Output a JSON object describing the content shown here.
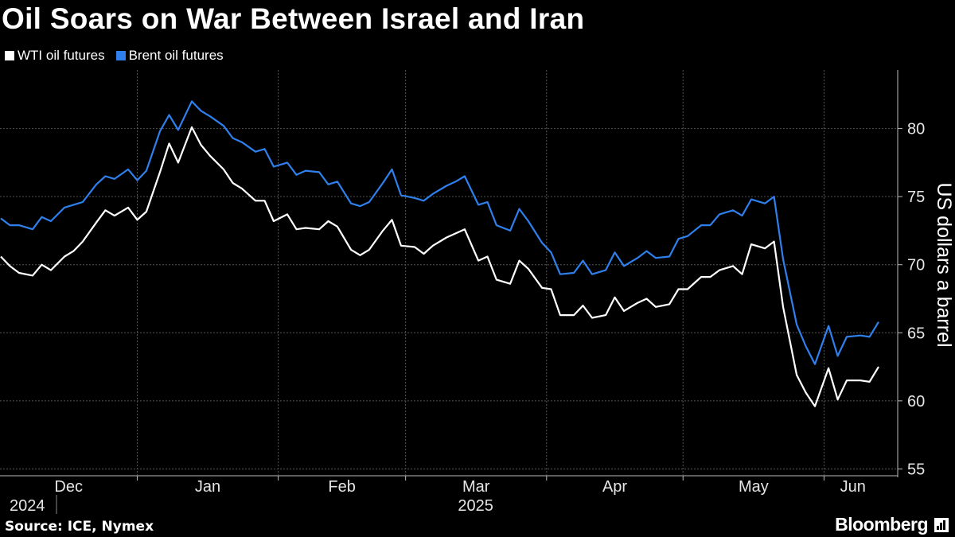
{
  "header": {
    "title": "Oil Soars on War Between Israel and Iran"
  },
  "footer": {
    "source": "Source: ICE, Nymex",
    "brand": "Bloomberg"
  },
  "chart_data": {
    "type": "line",
    "title": "Oil Soars on War Between Israel and Iran",
    "ylabel": "US dollars a barrel",
    "xlabel": "",
    "ylim": [
      54.5,
      84.3
    ],
    "yticks": [
      55,
      60,
      65,
      70,
      75,
      80
    ],
    "x_start": "2024-12-02",
    "x_end": "2025-06-13",
    "x_ticks": [
      {
        "label": "Dec",
        "date": "2024-12-01",
        "year": "2024"
      },
      {
        "label": "Jan",
        "date": "2025-01-01",
        "year": "2025"
      },
      {
        "label": "Feb",
        "date": "2025-02-01"
      },
      {
        "label": "Mar",
        "date": "2025-03-01"
      },
      {
        "label": "Apr",
        "date": "2025-04-01"
      },
      {
        "label": "May",
        "date": "2025-05-01"
      },
      {
        "label": "Jun",
        "date": "2025-06-01"
      }
    ],
    "x_year_dividers": [
      "2024-12-01",
      "2025-01-01"
    ],
    "year_labels": [
      {
        "text": "2024",
        "date": "2024-12-01"
      },
      {
        "text": "2025",
        "date": "2025-03-15"
      }
    ],
    "grid": true,
    "legend": "top-left",
    "series": [
      {
        "name": "WTI oil futures",
        "color": "#ffffff",
        "points": [
          [
            "2024-12-02",
            70.6
          ],
          [
            "2024-12-04",
            69.9
          ],
          [
            "2024-12-06",
            69.4
          ],
          [
            "2024-12-09",
            69.2
          ],
          [
            "2024-12-11",
            70.0
          ],
          [
            "2024-12-13",
            69.6
          ],
          [
            "2024-12-16",
            70.6
          ],
          [
            "2024-12-18",
            71.0
          ],
          [
            "2024-12-20",
            71.7
          ],
          [
            "2024-12-23",
            73.1
          ],
          [
            "2024-12-25",
            74.0
          ],
          [
            "2024-12-27",
            73.6
          ],
          [
            "2024-12-30",
            74.2
          ],
          [
            "2025-01-01",
            73.3
          ],
          [
            "2025-01-03",
            73.9
          ],
          [
            "2025-01-06",
            76.8
          ],
          [
            "2025-01-08",
            78.9
          ],
          [
            "2025-01-10",
            77.5
          ],
          [
            "2025-01-13",
            80.1
          ],
          [
            "2025-01-15",
            78.8
          ],
          [
            "2025-01-17",
            78.0
          ],
          [
            "2025-01-20",
            77.0
          ],
          [
            "2025-01-22",
            76.0
          ],
          [
            "2025-01-24",
            75.6
          ],
          [
            "2025-01-27",
            74.7
          ],
          [
            "2025-01-29",
            74.7
          ],
          [
            "2025-01-31",
            73.2
          ],
          [
            "2025-02-03",
            73.7
          ],
          [
            "2025-02-05",
            72.6
          ],
          [
            "2025-02-07",
            72.7
          ],
          [
            "2025-02-10",
            72.6
          ],
          [
            "2025-02-12",
            73.2
          ],
          [
            "2025-02-14",
            72.8
          ],
          [
            "2025-02-17",
            71.1
          ],
          [
            "2025-02-19",
            70.7
          ],
          [
            "2025-02-21",
            71.1
          ],
          [
            "2025-02-24",
            72.5
          ],
          [
            "2025-02-26",
            73.3
          ],
          [
            "2025-02-28",
            71.4
          ],
          [
            "2025-03-03",
            71.3
          ],
          [
            "2025-03-05",
            70.8
          ],
          [
            "2025-03-07",
            71.4
          ],
          [
            "2025-03-10",
            72.0
          ],
          [
            "2025-03-12",
            72.3
          ],
          [
            "2025-03-14",
            72.6
          ],
          [
            "2025-03-17",
            70.3
          ],
          [
            "2025-03-19",
            70.6
          ],
          [
            "2025-03-21",
            68.9
          ],
          [
            "2025-03-24",
            68.6
          ],
          [
            "2025-03-26",
            70.3
          ],
          [
            "2025-03-28",
            69.7
          ],
          [
            "2025-03-31",
            68.3
          ],
          [
            "2025-04-02",
            68.2
          ],
          [
            "2025-04-04",
            66.3
          ],
          [
            "2025-04-07",
            66.3
          ],
          [
            "2025-04-09",
            67.0
          ],
          [
            "2025-04-11",
            66.1
          ],
          [
            "2025-04-14",
            66.3
          ],
          [
            "2025-04-16",
            67.6
          ],
          [
            "2025-04-18",
            66.6
          ],
          [
            "2025-04-21",
            67.2
          ],
          [
            "2025-04-23",
            67.5
          ],
          [
            "2025-04-25",
            66.9
          ],
          [
            "2025-04-28",
            67.1
          ],
          [
            "2025-04-30",
            68.2
          ],
          [
            "2025-05-02",
            68.2
          ],
          [
            "2025-05-05",
            69.1
          ],
          [
            "2025-05-07",
            69.1
          ],
          [
            "2025-05-09",
            69.6
          ],
          [
            "2025-05-12",
            69.9
          ],
          [
            "2025-05-14",
            69.3
          ],
          [
            "2025-05-16",
            71.5
          ],
          [
            "2025-05-19",
            71.2
          ],
          [
            "2025-05-21",
            71.7
          ],
          [
            "2025-05-23",
            66.9
          ],
          [
            "2025-05-26",
            61.9
          ],
          [
            "2025-05-28",
            60.6
          ],
          [
            "2025-05-30",
            59.6
          ],
          [
            "2025-06-02",
            62.4
          ],
          [
            "2025-06-04",
            60.1
          ],
          [
            "2025-06-06",
            61.5
          ],
          [
            "2025-06-09",
            61.5
          ],
          [
            "2025-06-11",
            61.4
          ],
          [
            "2025-06-13",
            62.5
          ]
        ]
      },
      {
        "name": "Brent oil futures",
        "color": "#2f80ed",
        "points": [
          [
            "2024-12-02",
            73.4
          ],
          [
            "2024-12-04",
            72.9
          ],
          [
            "2024-12-06",
            72.9
          ],
          [
            "2024-12-09",
            72.6
          ],
          [
            "2024-12-11",
            73.5
          ],
          [
            "2024-12-13",
            73.2
          ],
          [
            "2024-12-16",
            74.2
          ],
          [
            "2024-12-18",
            74.4
          ],
          [
            "2024-12-20",
            74.6
          ],
          [
            "2024-12-23",
            75.9
          ],
          [
            "2024-12-25",
            76.5
          ],
          [
            "2024-12-27",
            76.3
          ],
          [
            "2024-12-30",
            77.0
          ],
          [
            "2025-01-01",
            76.2
          ],
          [
            "2025-01-03",
            76.9
          ],
          [
            "2025-01-06",
            79.8
          ],
          [
            "2025-01-08",
            81.0
          ],
          [
            "2025-01-10",
            79.9
          ],
          [
            "2025-01-13",
            82.0
          ],
          [
            "2025-01-15",
            81.3
          ],
          [
            "2025-01-17",
            80.9
          ],
          [
            "2025-01-20",
            80.2
          ],
          [
            "2025-01-22",
            79.3
          ],
          [
            "2025-01-24",
            79.0
          ],
          [
            "2025-01-27",
            78.3
          ],
          [
            "2025-01-29",
            78.5
          ],
          [
            "2025-01-31",
            77.2
          ],
          [
            "2025-02-03",
            77.5
          ],
          [
            "2025-02-05",
            76.6
          ],
          [
            "2025-02-07",
            76.9
          ],
          [
            "2025-02-10",
            76.8
          ],
          [
            "2025-02-12",
            75.9
          ],
          [
            "2025-02-14",
            76.1
          ],
          [
            "2025-02-17",
            74.5
          ],
          [
            "2025-02-19",
            74.3
          ],
          [
            "2025-02-21",
            74.6
          ],
          [
            "2025-02-24",
            76.0
          ],
          [
            "2025-02-26",
            77.0
          ],
          [
            "2025-02-28",
            75.1
          ],
          [
            "2025-03-03",
            74.9
          ],
          [
            "2025-03-05",
            74.7
          ],
          [
            "2025-03-07",
            75.2
          ],
          [
            "2025-03-10",
            75.8
          ],
          [
            "2025-03-12",
            76.1
          ],
          [
            "2025-03-14",
            76.5
          ],
          [
            "2025-03-17",
            74.4
          ],
          [
            "2025-03-19",
            74.6
          ],
          [
            "2025-03-21",
            72.9
          ],
          [
            "2025-03-24",
            72.5
          ],
          [
            "2025-03-26",
            74.1
          ],
          [
            "2025-03-28",
            73.2
          ],
          [
            "2025-03-31",
            71.6
          ],
          [
            "2025-04-02",
            70.9
          ],
          [
            "2025-04-04",
            69.3
          ],
          [
            "2025-04-07",
            69.4
          ],
          [
            "2025-04-09",
            70.3
          ],
          [
            "2025-04-11",
            69.3
          ],
          [
            "2025-04-14",
            69.6
          ],
          [
            "2025-04-16",
            70.9
          ],
          [
            "2025-04-18",
            69.9
          ],
          [
            "2025-04-21",
            70.5
          ],
          [
            "2025-04-23",
            71.0
          ],
          [
            "2025-04-25",
            70.5
          ],
          [
            "2025-04-28",
            70.6
          ],
          [
            "2025-04-30",
            71.9
          ],
          [
            "2025-05-02",
            72.1
          ],
          [
            "2025-05-05",
            72.9
          ],
          [
            "2025-05-07",
            72.9
          ],
          [
            "2025-05-09",
            73.7
          ],
          [
            "2025-05-12",
            74.0
          ],
          [
            "2025-05-14",
            73.6
          ],
          [
            "2025-05-16",
            74.8
          ],
          [
            "2025-05-19",
            74.5
          ],
          [
            "2025-05-21",
            75.0
          ],
          [
            "2025-05-23",
            70.4
          ],
          [
            "2025-05-26",
            65.6
          ],
          [
            "2025-05-28",
            64.0
          ],
          [
            "2025-05-30",
            62.7
          ],
          [
            "2025-06-02",
            65.5
          ],
          [
            "2025-06-04",
            63.3
          ],
          [
            "2025-06-06",
            64.7
          ],
          [
            "2025-06-09",
            64.8
          ],
          [
            "2025-06-11",
            64.7
          ],
          [
            "2025-06-13",
            65.8
          ]
        ]
      }
    ]
  }
}
